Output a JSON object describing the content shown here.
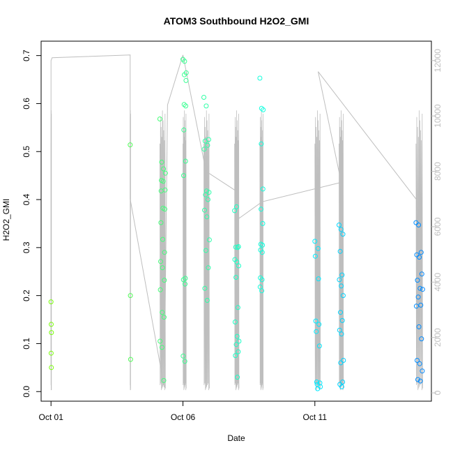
{
  "chart_data": {
    "type": "scatter",
    "title": "ATOM3 Southbound H2O2_GMI",
    "xlabel": "Date",
    "ylabel": "H2O2_GMI",
    "y_ticks": [
      "0.0",
      "0.1",
      "0.2",
      "0.3",
      "0.4",
      "0.5",
      "0.6",
      "0.7"
    ],
    "y_tick_values": [
      0,
      0.1,
      0.2,
      0.3,
      0.4,
      0.5,
      0.6,
      0.7
    ],
    "ylim": [
      -0.02,
      0.73
    ],
    "x_ticks": [
      "Oct 01",
      "Oct 06",
      "Oct 11"
    ],
    "x_tick_values": [
      "2017-10-01",
      "2017-10-06",
      "2017-10-11"
    ],
    "xlim": [
      "2017-09-30T15:00",
      "2017-10-15T10:00"
    ],
    "y2_ticks": [
      "0",
      "2000",
      "4000",
      "6000",
      "8000",
      "10000",
      "12000"
    ],
    "y2_tick_values": [
      0,
      2000,
      4000,
      6000,
      8000,
      10000,
      12000
    ],
    "y2lim": [
      -300,
      12700
    ],
    "grid": false,
    "colors": {
      "altitude_line": "#bebebe",
      "point_start": "#80ff00",
      "point_mid": "#00ffff",
      "point_end": "#0080ff",
      "right_axis": "#bebebe"
    },
    "flights": [
      {
        "t": "2017-10-01T00:00",
        "span_hours": 0.4,
        "values": [
          0.187,
          0.14,
          0.123,
          0.08,
          0.05
        ]
      },
      {
        "t": "2017-10-04T00:00",
        "span_hours": 0.4,
        "values": [
          0.514,
          0.2,
          0.067
        ]
      },
      {
        "t": "2017-10-05T03:00",
        "span_hours": 5,
        "values": [
          0.568,
          0.478,
          0.464,
          0.455,
          0.44,
          0.438,
          0.42,
          0.418,
          0.382,
          0.38,
          0.352,
          0.317,
          0.29,
          0.271,
          0.258,
          0.232,
          0.212,
          0.165,
          0.155,
          0.105,
          0.092,
          0.023
        ]
      },
      {
        "t": "2017-10-06T00:00",
        "span_hours": 3,
        "values": [
          0.692,
          0.688,
          0.664,
          0.66,
          0.648,
          0.598,
          0.595,
          0.545,
          0.48,
          0.45,
          0.236,
          0.233,
          0.224,
          0.074,
          0.063
        ]
      },
      {
        "t": "2017-10-06T19:00",
        "span_hours": 5,
        "values": [
          0.613,
          0.595,
          0.525,
          0.522,
          0.513,
          0.505,
          0.418,
          0.415,
          0.41,
          0.4,
          0.378,
          0.364,
          0.316,
          0.294,
          0.258,
          0.215,
          0.19
        ]
      },
      {
        "t": "2017-10-07T23:00",
        "span_hours": 4,
        "values": [
          0.377,
          0.385,
          0.302,
          0.301,
          0.3,
          0.275,
          0.27,
          0.262,
          0.238,
          0.175,
          0.145,
          0.115,
          0.105,
          0.098,
          0.083,
          0.075,
          0.03
        ]
      },
      {
        "t": "2017-10-08T22:00",
        "span_hours": 3,
        "values": [
          0.653,
          0.59,
          0.587,
          0.516,
          0.422,
          0.38,
          0.35,
          0.307,
          0.305,
          0.295,
          0.29,
          0.237,
          0.233,
          0.218,
          0.21
        ]
      },
      {
        "t": "2017-10-11T00:00",
        "span_hours": 5,
        "values": [
          0.313,
          0.298,
          0.282,
          0.235,
          0.147,
          0.14,
          0.125,
          0.095,
          0.02,
          0.018,
          0.015,
          0.01,
          0.006
        ]
      },
      {
        "t": "2017-10-11T22:00",
        "span_hours": 4,
        "values": [
          0.347,
          0.338,
          0.328,
          0.292,
          0.243,
          0.233,
          0.22,
          0.2,
          0.165,
          0.148,
          0.128,
          0.12,
          0.065,
          0.06,
          0.02,
          0.015,
          0.01
        ]
      },
      {
        "t": "2017-10-14T20:00",
        "span_hours": 6,
        "values": [
          0.352,
          0.347,
          0.29,
          0.285,
          0.28,
          0.245,
          0.232,
          0.215,
          0.213,
          0.197,
          0.18,
          0.178,
          0.135,
          0.11,
          0.065,
          0.058,
          0.043,
          0.025,
          0.022
        ]
      }
    ],
    "altitude_series": [
      {
        "t": "2017-10-01T00:00",
        "alt": 1000
      },
      {
        "t": "2017-10-01T00:00",
        "alt": 12000
      },
      {
        "t": "2017-10-01T01:00",
        "alt": 12100
      },
      {
        "t": "2017-10-04T00:00",
        "alt": 12200
      },
      {
        "t": "2017-10-04T00:00",
        "alt": 7000
      },
      {
        "t": "2017-10-05T07:00",
        "alt": 200
      },
      {
        "t": "2017-10-05T10:00",
        "alt": 10400
      },
      {
        "t": "2017-10-06T00:00",
        "alt": 12200
      },
      {
        "t": "2017-10-06T21:00",
        "alt": 8000
      },
      {
        "t": "2017-10-08T00:00",
        "alt": 7300
      },
      {
        "t": "2017-10-08T03:00",
        "alt": 6300
      },
      {
        "t": "2017-10-09T00:00",
        "alt": 6900
      },
      {
        "t": "2017-10-12T00:00",
        "alt": 7600
      },
      {
        "t": "2017-10-11T03:00",
        "alt": 11600
      },
      {
        "t": "2017-10-14T20:00",
        "alt": 7000
      }
    ]
  }
}
